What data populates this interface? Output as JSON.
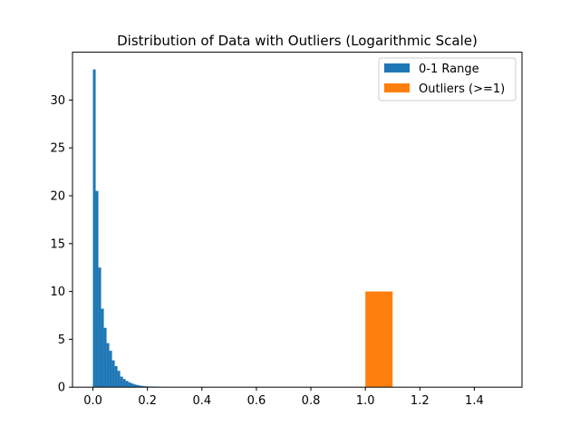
{
  "chart_data": {
    "type": "bar",
    "title": "Distribution of Data with Outliers (Logarithmic Scale)",
    "xlabel": "",
    "ylabel": "",
    "xlim": [
      -0.075,
      1.575
    ],
    "ylim": [
      0,
      35
    ],
    "x_ticks": [
      0.0,
      0.2,
      0.4,
      0.6,
      0.8,
      1.0,
      1.2,
      1.4
    ],
    "x_tick_labels": [
      "0.0",
      "0.2",
      "0.4",
      "0.6",
      "0.8",
      "1.0",
      "1.2",
      "1.4"
    ],
    "y_ticks": [
      0,
      5,
      10,
      15,
      20,
      25,
      30
    ],
    "y_tick_labels": [
      "0",
      "5",
      "10",
      "15",
      "20",
      "25",
      "30"
    ],
    "grid": false,
    "legend_position": "top-right",
    "series": [
      {
        "name": "0-1 Range",
        "color": "#1f77b4",
        "bin_width": 0.01,
        "bin_starts": [
          0.0,
          0.01,
          0.02,
          0.03,
          0.04,
          0.05,
          0.06,
          0.07,
          0.08,
          0.09,
          0.1,
          0.11,
          0.12,
          0.13,
          0.14,
          0.15,
          0.16,
          0.17,
          0.18,
          0.19,
          0.2,
          0.21,
          0.22,
          0.23,
          0.24
        ],
        "values": [
          33.2,
          20.5,
          12.5,
          8.2,
          6.2,
          4.6,
          3.8,
          2.8,
          2.2,
          1.7,
          1.1,
          0.85,
          0.65,
          0.5,
          0.38,
          0.28,
          0.22,
          0.16,
          0.12,
          0.09,
          0.07,
          0.06,
          0.05,
          0.04,
          0.03
        ]
      },
      {
        "name": "Outliers (>=1)",
        "color": "#ff7f0e",
        "bin_width": 0.1,
        "bin_starts": [
          1.0
        ],
        "values": [
          10
        ]
      }
    ]
  }
}
